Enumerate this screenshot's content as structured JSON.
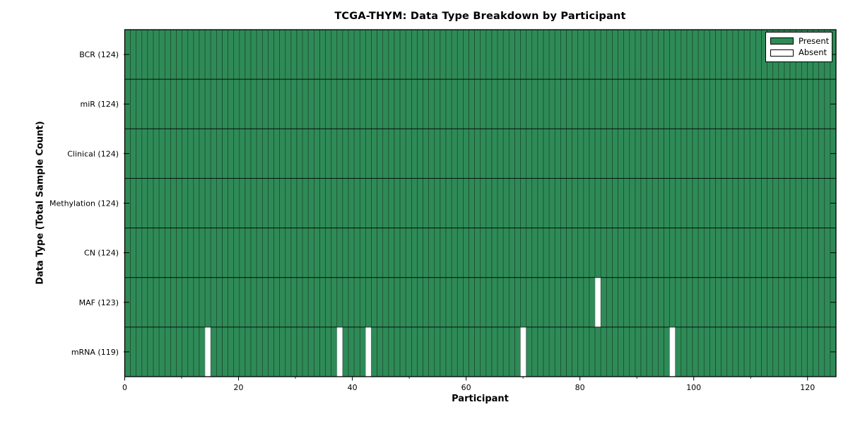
{
  "figure": {
    "title": "TCGA-THYM: Data Type Breakdown by Participant",
    "xlabel": "Participant",
    "ylabel": "Data Type (Total Sample Count)"
  },
  "legend": {
    "items": [
      {
        "label": "Present",
        "color": "#2e8b57"
      },
      {
        "label": "Absent",
        "color": "#ffffff"
      }
    ]
  },
  "chart_data": {
    "type": "heatmap",
    "title": "TCGA-THYM: Data Type Breakdown by Participant",
    "xlabel": "Participant",
    "ylabel": "Data Type (Total Sample Count)",
    "n_participants": 124,
    "xlim": [
      0,
      125
    ],
    "x_major_ticks": [
      0,
      20,
      40,
      60,
      80,
      100,
      120
    ],
    "x_minor_ticks": [
      10,
      30,
      50,
      70,
      90,
      110
    ],
    "rows": [
      {
        "data_type": "BCR",
        "label": "BCR (124)",
        "present_count": 124,
        "absent_participants": []
      },
      {
        "data_type": "miR",
        "label": "miR (124)",
        "present_count": 124,
        "absent_participants": []
      },
      {
        "data_type": "Clinical",
        "label": "Clinical (124)",
        "present_count": 124,
        "absent_participants": []
      },
      {
        "data_type": "Methylation",
        "label": "Methylation (124)",
        "present_count": 124,
        "absent_participants": []
      },
      {
        "data_type": "CN",
        "label": "CN (124)",
        "present_count": 124,
        "absent_participants": []
      },
      {
        "data_type": "MAF",
        "label": "MAF (123)",
        "present_count": 123,
        "absent_participants": [
          82
        ]
      },
      {
        "data_type": "mRNA",
        "label": "mRNA (119)",
        "present_count": 119,
        "absent_participants": [
          14,
          37,
          42,
          69,
          95
        ]
      }
    ],
    "colors": {
      "present": "#2e8b57",
      "absent": "#ffffff",
      "cell_edge": "#000000",
      "absent_edge": "#9a9a9a"
    },
    "legend_entries": [
      "Present",
      "Absent"
    ],
    "legend_position": "upper right",
    "grid": false
  }
}
